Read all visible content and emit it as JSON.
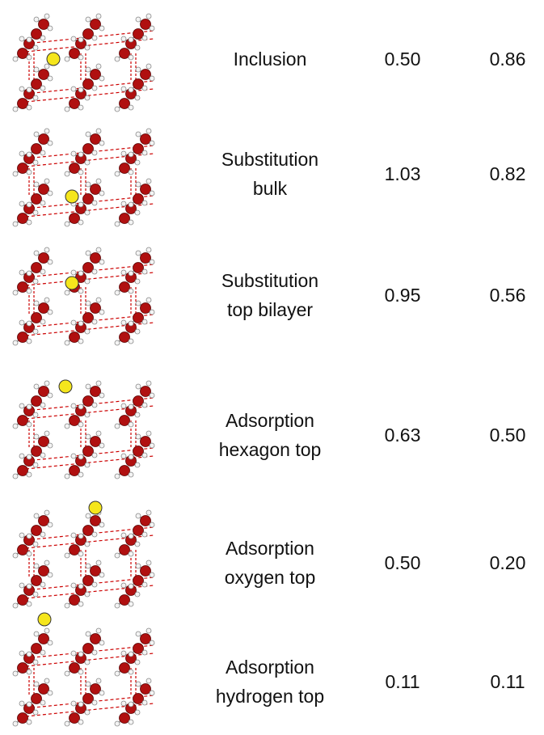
{
  "rows": [
    {
      "label": [
        "Inclusion"
      ],
      "value_1": "0.50",
      "value_2": "0.86"
    },
    {
      "label": [
        "Substitution",
        "bulk"
      ],
      "value_1": "1.03",
      "value_2": "0.82"
    },
    {
      "label": [
        "Substitution",
        "top bilayer"
      ],
      "value_1": "0.95",
      "value_2": "0.56"
    },
    {
      "label": [
        "Adsorption",
        "hexagon top"
      ],
      "value_1": "0.63",
      "value_2": "0.50"
    },
    {
      "label": [
        "Adsorption",
        "oxygen top"
      ],
      "value_1": "0.50",
      "value_2": "0.20"
    },
    {
      "label": [
        "Adsorption",
        "hydrogen top"
      ],
      "value_1": "0.11",
      "value_2": "0.11"
    }
  ]
}
